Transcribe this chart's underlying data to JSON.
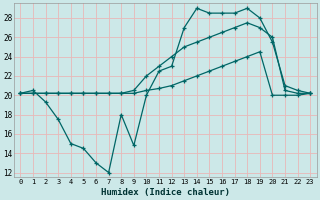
{
  "xlabel": "Humidex (Indice chaleur)",
  "background_color": "#cce8e8",
  "grid_color": "#e8b8b8",
  "line_color": "#006666",
  "xlim": [
    -0.5,
    23.5
  ],
  "ylim": [
    11.5,
    29.5
  ],
  "xticks": [
    0,
    1,
    2,
    3,
    4,
    5,
    6,
    7,
    8,
    9,
    10,
    11,
    12,
    13,
    14,
    15,
    16,
    17,
    18,
    19,
    20,
    21,
    22,
    23
  ],
  "yticks": [
    12,
    14,
    16,
    18,
    20,
    22,
    24,
    26,
    28
  ],
  "series1_x": [
    0,
    1,
    2,
    3,
    4,
    5,
    6,
    7,
    8,
    9,
    10,
    11,
    12,
    13,
    14,
    15,
    16,
    17,
    18,
    19,
    20,
    21,
    22,
    23
  ],
  "series1_y": [
    20.2,
    20.5,
    19.3,
    17.5,
    15.0,
    14.5,
    13.0,
    12.0,
    18.0,
    14.8,
    20.0,
    22.5,
    23.0,
    27.0,
    29.0,
    28.5,
    28.5,
    28.5,
    29.0,
    28.0,
    25.5,
    21.0,
    20.5,
    20.2
  ],
  "series2_x": [
    0,
    1,
    2,
    3,
    4,
    5,
    6,
    7,
    8,
    9,
    10,
    11,
    12,
    13,
    14,
    15,
    16,
    17,
    18,
    19,
    20,
    21,
    22,
    23
  ],
  "series2_y": [
    20.2,
    20.2,
    20.2,
    20.2,
    20.2,
    20.2,
    20.2,
    20.2,
    20.2,
    20.5,
    22.0,
    23.0,
    24.0,
    25.0,
    25.5,
    26.0,
    26.5,
    27.0,
    27.5,
    27.0,
    26.0,
    20.5,
    20.2,
    20.2
  ],
  "series3_x": [
    0,
    1,
    2,
    3,
    4,
    5,
    6,
    7,
    8,
    9,
    10,
    11,
    12,
    13,
    14,
    15,
    16,
    17,
    18,
    19,
    20,
    21,
    22,
    23
  ],
  "series3_y": [
    20.2,
    20.2,
    20.2,
    20.2,
    20.2,
    20.2,
    20.2,
    20.2,
    20.2,
    20.2,
    20.5,
    20.7,
    21.0,
    21.5,
    22.0,
    22.5,
    23.0,
    23.5,
    24.0,
    24.5,
    20.0,
    20.0,
    20.0,
    20.2
  ]
}
